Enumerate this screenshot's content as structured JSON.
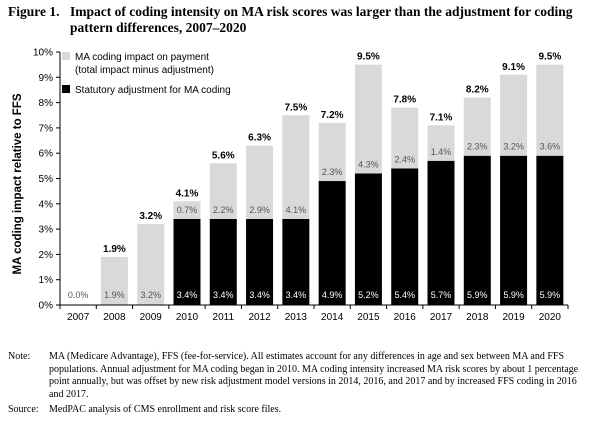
{
  "figure": {
    "label": "Figure 1.",
    "title": "Impact of coding intensity on MA risk scores was larger than the adjustment for coding pattern differences, 2007–2020"
  },
  "chart_data": {
    "type": "bar",
    "stacked": true,
    "categories": [
      "2007",
      "2008",
      "2009",
      "2010",
      "2011",
      "2012",
      "2013",
      "2014",
      "2015",
      "2016",
      "2017",
      "2018",
      "2019",
      "2020"
    ],
    "ylabel": "MA coding impact relative to FFS",
    "ylim": [
      0,
      10
    ],
    "ytick_labels": [
      "0%",
      "1%",
      "2%",
      "3%",
      "4%",
      "5%",
      "6%",
      "7%",
      "8%",
      "9%",
      "10%"
    ],
    "legend_position": "top-left",
    "series": [
      {
        "name": "Statutory adjustment for MA coding",
        "color": "#000000",
        "values": [
          0,
          0,
          0,
          3.4,
          3.4,
          3.4,
          3.4,
          4.9,
          5.2,
          5.4,
          5.7,
          5.9,
          5.9,
          5.9
        ],
        "labels": [
          "",
          "",
          "",
          "3.4%",
          "3.4%",
          "3.4%",
          "3.4%",
          "4.9%",
          "5.2%",
          "5.4%",
          "5.7%",
          "5.9%",
          "5.9%",
          "5.9%"
        ]
      },
      {
        "name": "MA coding impact on payment",
        "name_line2": "(total impact minus adjustment)",
        "color": "#d9d9d9",
        "values": [
          0,
          1.9,
          3.2,
          0.7,
          2.2,
          2.9,
          4.1,
          2.3,
          4.3,
          2.4,
          1.4,
          2.3,
          3.2,
          3.6
        ],
        "labels": [
          "0.0%",
          "1.9%",
          "3.2%",
          "0.7%",
          "2.2%",
          "2.9%",
          "4.1%",
          "2.3%",
          "4.3%",
          "2.4%",
          "1.4%",
          "2.3%",
          "3.2%",
          "3.6%"
        ]
      }
    ],
    "totals": [
      0,
      1.9,
      3.2,
      4.1,
      5.6,
      6.3,
      7.5,
      7.2,
      9.5,
      7.8,
      7.1,
      8.2,
      9.1,
      9.5
    ],
    "total_labels": [
      "",
      "1.9%",
      "3.2%",
      "4.1%",
      "5.6%",
      "6.3%",
      "7.5%",
      "7.2%",
      "9.5%",
      "7.8%",
      "7.1%",
      "8.2%",
      "9.1%",
      "9.5%"
    ]
  },
  "note": {
    "label": "Note:",
    "text": "MA (Medicare Advantage), FFS (fee-for-service). All estimates account for any differences in age and sex between MA and FFS populations. Annual adjustment for MA coding began in 2010. MA coding intensity increased MA risk scores by about 1 percentage point annually, but was offset by new risk adjustment model versions in 2014, 2016, and 2017 and by increased FFS coding in 2016 and 2017."
  },
  "source": {
    "label": "Source:",
    "text": "MedPAC analysis of CMS enrollment and risk score files."
  }
}
